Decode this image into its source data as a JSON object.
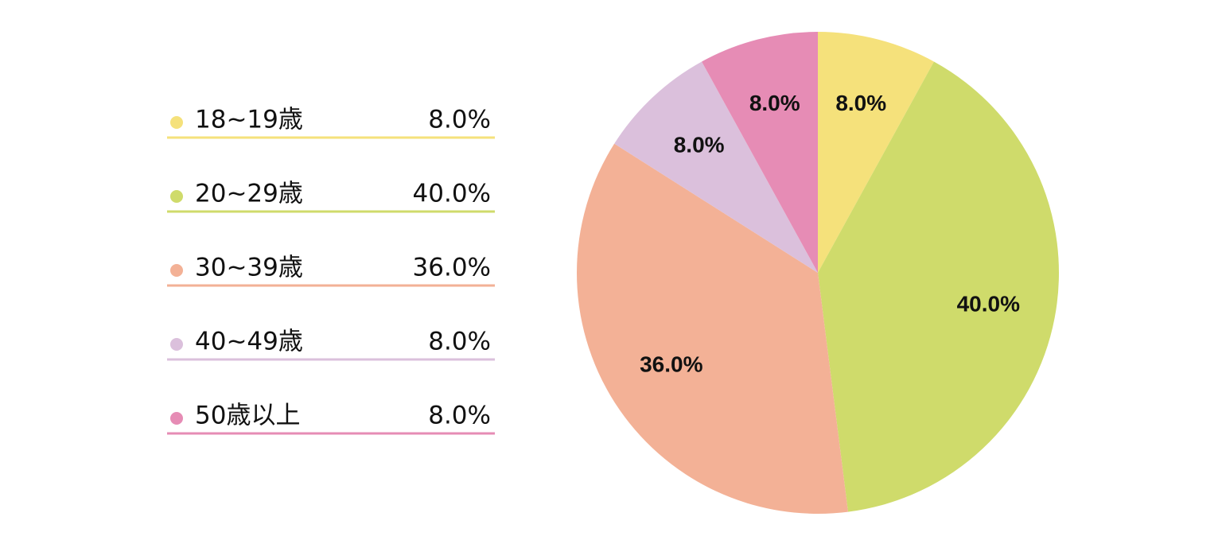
{
  "chart_data": {
    "type": "pie",
    "categories": [
      "18~19歳",
      "20~29歳",
      "30~39歳",
      "40~49歳",
      "50歳以上"
    ],
    "values": [
      8,
      40,
      36,
      8,
      8
    ],
    "value_labels": [
      "8.0%",
      "40.0%",
      "36.0%",
      "8.0%",
      "8.0%"
    ],
    "colors": [
      "#f5e17b",
      "#cfdb6b",
      "#f3b196",
      "#dbc0dc",
      "#e68cb5"
    ]
  }
}
